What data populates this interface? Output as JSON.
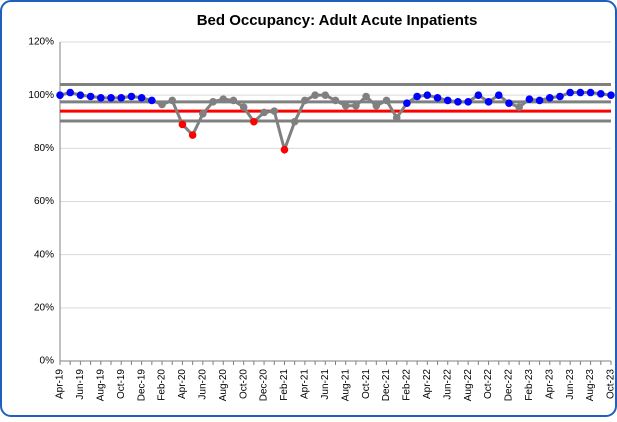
{
  "chart_data": {
    "type": "line",
    "title": "Bed Occupancy: Adult Acute Inpatients",
    "categories": [
      "Apr-19",
      null,
      "Jun-19",
      null,
      "Aug-19",
      null,
      "Oct-19",
      null,
      "Dec-19",
      null,
      "Feb-20",
      null,
      "Apr-20",
      null,
      "Jun-20",
      null,
      "Aug-20",
      null,
      "Oct-20",
      null,
      "Dec-20",
      null,
      "Feb-21",
      null,
      "Apr-21",
      null,
      "Jun-21",
      null,
      "Aug-21",
      null,
      "Oct-21",
      null,
      "Dec-21",
      null,
      "Feb-22",
      null,
      "Apr-22",
      null,
      "Jun-22",
      null,
      "Aug-22",
      null,
      "Oct-22",
      null,
      "Dec-22",
      null,
      "Feb-23",
      null,
      "Apr-23",
      null,
      "Jun-23",
      null,
      "Aug-23",
      null,
      "Oct-23"
    ],
    "series": [
      {
        "color": "#808080",
        "values": [
          100,
          101,
          100,
          99.5,
          99,
          99,
          99,
          99.5,
          99,
          98,
          96.5,
          98,
          89,
          85,
          93,
          97.5,
          98.5,
          98,
          95.5,
          90,
          93.5,
          94,
          79.5,
          90,
          98,
          100,
          100,
          98,
          96,
          96,
          99.5,
          96,
          98,
          91.5,
          97,
          99.5,
          100,
          99,
          98,
          97.5,
          97.5,
          100,
          97.5,
          100,
          97,
          95.5,
          98.5,
          98,
          99,
          99.5,
          101,
          101,
          101,
          100.5,
          100
        ],
        "point_colors": [
          "#0000ff",
          "#0000ff",
          "#0000ff",
          "#0000ff",
          "#0000ff",
          "#0000ff",
          "#0000ff",
          "#0000ff",
          "#0000ff",
          "#0000ff",
          "#808080",
          "#808080",
          "#ff0000",
          "#ff0000",
          "#808080",
          "#808080",
          "#808080",
          "#808080",
          "#808080",
          "#ff0000",
          "#808080",
          "#808080",
          "#ff0000",
          "#808080",
          "#808080",
          "#808080",
          "#808080",
          "#808080",
          "#808080",
          "#808080",
          "#808080",
          "#808080",
          "#808080",
          "#808080",
          "#0000ff",
          "#0000ff",
          "#0000ff",
          "#0000ff",
          "#0000ff",
          "#0000ff",
          "#0000ff",
          "#0000ff",
          "#0000ff",
          "#0000ff",
          "#0000ff",
          "#808080",
          "#0000ff",
          "#0000ff",
          "#0000ff",
          "#0000ff",
          "#0000ff",
          "#0000ff",
          "#0000ff",
          "#0000ff",
          "#0000ff"
        ]
      }
    ],
    "reference_lines": [
      {
        "value": 104,
        "color": "#808080"
      },
      {
        "value": 97.5,
        "color": "#808080"
      },
      {
        "value": 94,
        "color": "#ff0000"
      },
      {
        "value": 90.3,
        "color": "#808080"
      }
    ],
    "ylim": [
      0,
      120
    ],
    "yticks": [
      {
        "value": 0,
        "label": "0%"
      },
      {
        "value": 20,
        "label": "20%"
      },
      {
        "value": 40,
        "label": "40%"
      },
      {
        "value": 60,
        "label": "60%"
      },
      {
        "value": 80,
        "label": "80%"
      },
      {
        "value": 100,
        "label": "100%"
      },
      {
        "value": 120,
        "label": "120%"
      }
    ],
    "grid": true
  }
}
